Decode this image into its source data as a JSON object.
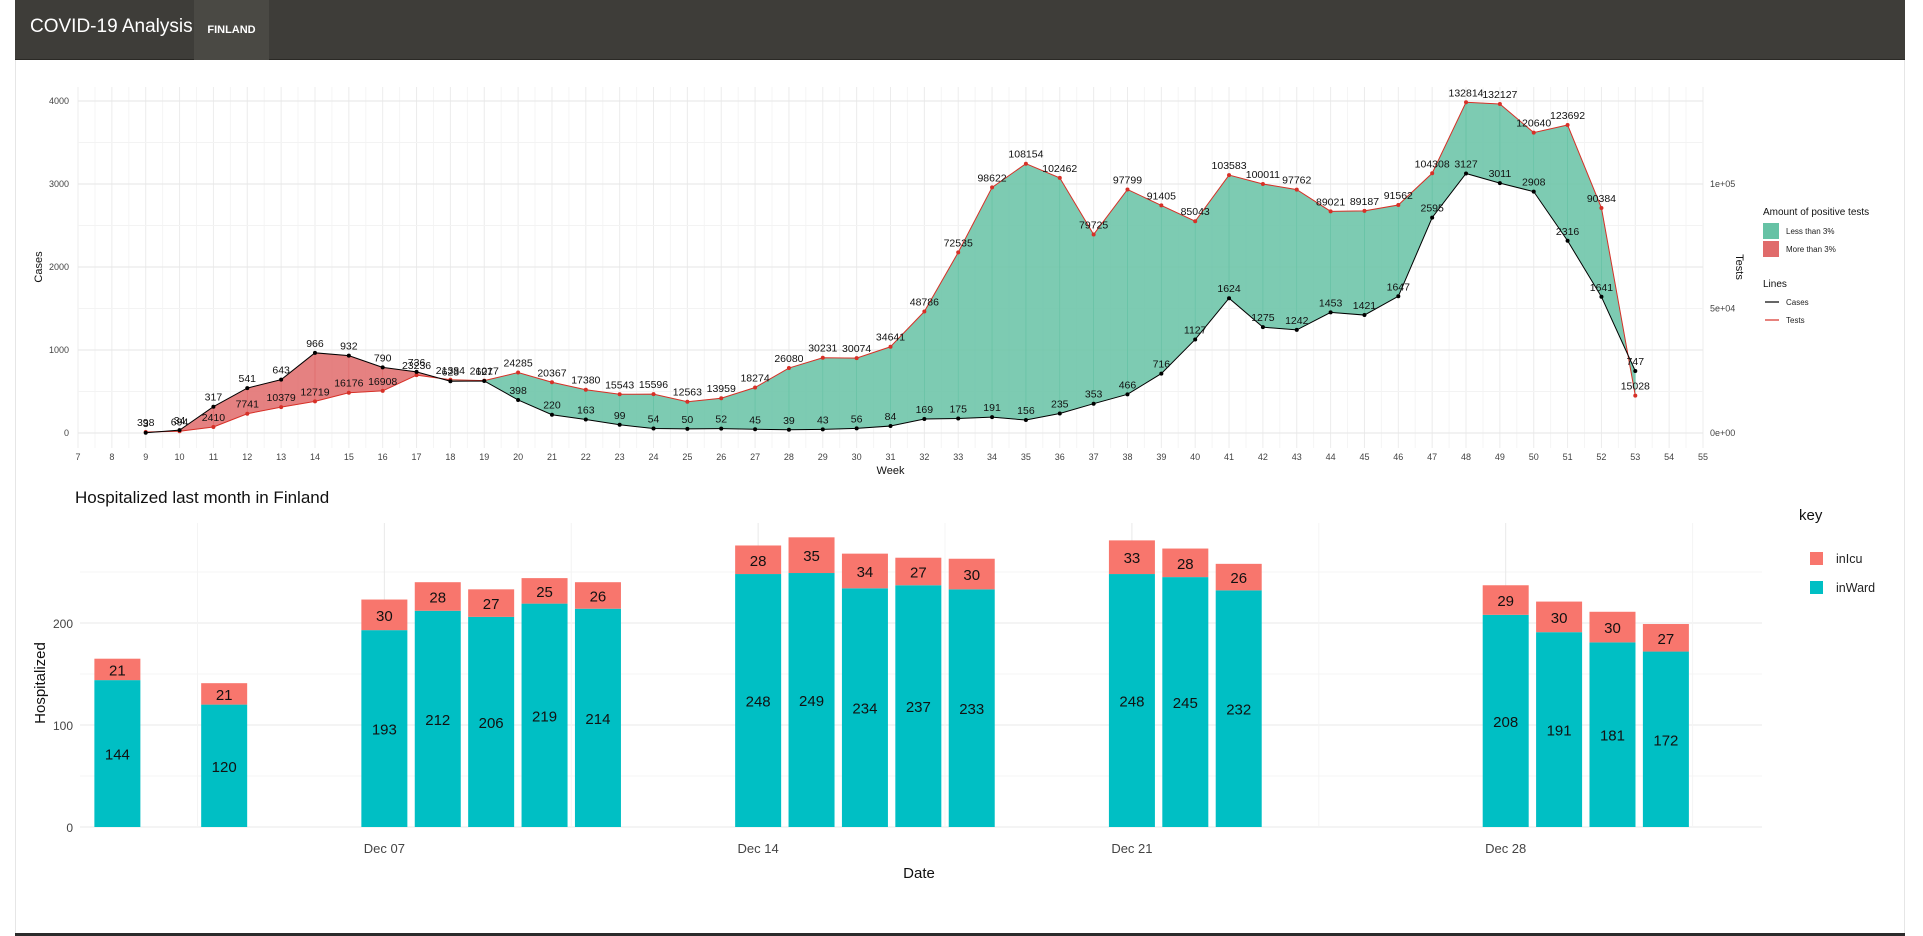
{
  "app": {
    "title": "COVID-19 Analysis",
    "tab": "FINLAND"
  },
  "colors": {
    "navbar": "#3e3d39",
    "less_than_3": "#66c2a5",
    "more_than_3": "#e06b6b",
    "cases_line": "#000000",
    "tests_line": "#d73027",
    "in_icu": "#f8766d",
    "in_ward": "#00bfc4"
  },
  "chart_data": [
    {
      "type": "line",
      "title": "",
      "xlabel": "Week",
      "ylabel": "Cases",
      "y2label": "Tests",
      "xlim": [
        7,
        55
      ],
      "ylim": [
        0,
        4000
      ],
      "y2lim": [
        0,
        133333
      ],
      "x_ticks": [
        "7",
        "8",
        "9",
        "10",
        "11",
        "12",
        "13",
        "14",
        "15",
        "16",
        "17",
        "18",
        "19",
        "20",
        "21",
        "22",
        "23",
        "24",
        "25",
        "26",
        "27",
        "28",
        "29",
        "30",
        "31",
        "32",
        "33",
        "34",
        "35",
        "36",
        "37",
        "38",
        "39",
        "40",
        "41",
        "42",
        "43",
        "44",
        "45",
        "46",
        "47",
        "48",
        "49",
        "50",
        "51",
        "52",
        "53",
        "54",
        "55"
      ],
      "y_ticks": [
        "0",
        "1000",
        "2000",
        "3000",
        "4000"
      ],
      "y2_ticks": [
        "0e+00",
        "5e+04",
        "1e+05"
      ],
      "grid": true,
      "legend_position": "right",
      "fill_legend": {
        "title": "Amount of positive tests",
        "items": [
          {
            "label": "Less than 3%",
            "color": "#66c2a5"
          },
          {
            "label": "More than 3%",
            "color": "#e06b6b"
          }
        ]
      },
      "line_legend": {
        "title": "Lines",
        "items": [
          {
            "label": "Cases",
            "color": "#000000"
          },
          {
            "label": "Tests",
            "color": "#d73027"
          }
        ]
      },
      "series": [
        {
          "name": "Cases",
          "x": [
            9,
            10,
            11,
            12,
            13,
            14,
            15,
            16,
            17,
            18,
            19,
            20,
            21,
            22,
            23,
            24,
            25,
            26,
            27,
            28,
            29,
            30,
            31,
            32,
            33,
            34,
            35,
            36,
            37,
            38,
            39,
            40,
            41,
            42,
            43,
            44,
            45,
            46,
            47,
            48,
            49,
            50,
            51,
            52,
            53
          ],
          "values": [
            3,
            34,
            317,
            541,
            643,
            966,
            932,
            790,
            736,
            623,
            627,
            398,
            220,
            163,
            99,
            54,
            50,
            52,
            45,
            39,
            43,
            56,
            84,
            169,
            175,
            191,
            156,
            235,
            353,
            466,
            716,
            1127,
            1624,
            1275,
            1242,
            1453,
            1421,
            1647,
            2595,
            3127,
            3011,
            2908,
            2316,
            1641,
            747
          ]
        },
        {
          "name": "Tests",
          "x": [
            9,
            10,
            11,
            12,
            13,
            14,
            15,
            16,
            17,
            18,
            19,
            20,
            21,
            22,
            23,
            24,
            25,
            26,
            27,
            28,
            29,
            30,
            31,
            32,
            33,
            34,
            35,
            36,
            37,
            38,
            39,
            40,
            41,
            42,
            43,
            44,
            45,
            46,
            47,
            48,
            49,
            50,
            51,
            52,
            53
          ],
          "values": [
            398,
            694,
            2410,
            7741,
            10379,
            12719,
            16176,
            16908,
            23236,
            21384,
            21017,
            24285,
            20367,
            17380,
            15543,
            15596,
            12563,
            13959,
            18274,
            26080,
            30231,
            30074,
            34641,
            48786,
            72535,
            98622,
            108154,
            102462,
            79725,
            97799,
            91405,
            85043,
            103583,
            100011,
            97762,
            89021,
            89187,
            91562,
            104308,
            132814,
            132127,
            120640,
            123692,
            90384,
            15028
          ]
        }
      ],
      "annotations": {
        "cases_labels": [
          "3",
          "34",
          "317",
          "541",
          "643",
          "966",
          "932",
          "790",
          "736",
          "623",
          "627",
          "398",
          "220",
          "163",
          "99",
          "54",
          "50",
          "52",
          "45",
          "39",
          "43",
          "56",
          "84",
          "169",
          "175",
          "191",
          "156",
          "235",
          "353",
          "466",
          "716",
          "1127",
          "1624",
          "1275",
          "1242",
          "1453",
          "1421",
          "1647",
          "2595",
          "3127",
          "3011",
          "2908",
          "2316",
          "1641",
          "747"
        ],
        "tests_labels": [
          "398",
          "694",
          "2410",
          "7741",
          "10379",
          "12719",
          "16176",
          "16908",
          "23236",
          "21384",
          "21017",
          "24285",
          "20367",
          "17380",
          "15543",
          "15596",
          "12563",
          "13959",
          "18274",
          "26080",
          "30231",
          "30074",
          "34641",
          "48786",
          "72535",
          "98622",
          "108154",
          "102462",
          "79725",
          "97799",
          "91405",
          "85043",
          "103583",
          "100011",
          "97762",
          "89021",
          "89187",
          "91562",
          "104308",
          "132814",
          "132127",
          "120640",
          "123692",
          "90384",
          "15028"
        ]
      }
    },
    {
      "type": "bar",
      "title": "Hospitalized last month in Finland",
      "xlabel": "Date",
      "ylabel": "Hospitalized",
      "ylim": [
        0,
        290
      ],
      "y_ticks": [
        "0",
        "100",
        "200"
      ],
      "x_tick_labels": [
        {
          "day": 7,
          "label": "Dec 07"
        },
        {
          "day": 14,
          "label": "Dec 14"
        },
        {
          "day": 21,
          "label": "Dec 21"
        },
        {
          "day": 28,
          "label": "Dec 28"
        }
      ],
      "xlim": [
        1.3,
        32.8
      ],
      "grid": true,
      "legend_position": "right",
      "legend": {
        "title": "key",
        "items": [
          {
            "label": "inIcu",
            "color": "#f8766d"
          },
          {
            "label": "inWard",
            "color": "#00bfc4"
          }
        ]
      },
      "categories": [
        2,
        4,
        7,
        8,
        9,
        10,
        11,
        14,
        15,
        16,
        17,
        18,
        21,
        22,
        23,
        28,
        29,
        30,
        31
      ],
      "series": [
        {
          "name": "inWard",
          "values": [
            144,
            120,
            193,
            212,
            206,
            219,
            214,
            248,
            249,
            234,
            237,
            233,
            248,
            245,
            232,
            208,
            191,
            181,
            172
          ]
        },
        {
          "name": "inIcu",
          "values": [
            21,
            21,
            30,
            28,
            27,
            25,
            26,
            28,
            35,
            34,
            27,
            30,
            33,
            28,
            26,
            29,
            30,
            30,
            27
          ]
        }
      ]
    }
  ]
}
